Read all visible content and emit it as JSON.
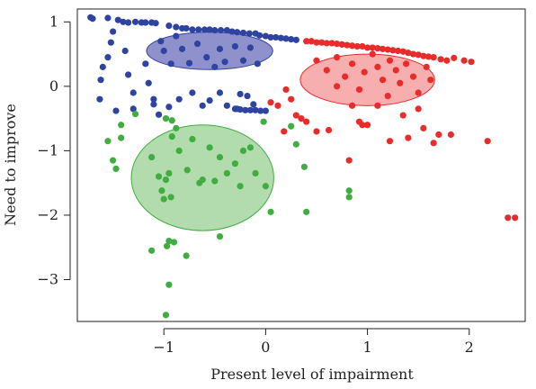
{
  "chart_data": {
    "type": "scatter",
    "title": "",
    "xlabel": "Present level of impairment",
    "ylabel": "Need to improve",
    "xlim": [
      -1.85,
      2.55
    ],
    "ylim": [
      -3.65,
      1.2
    ],
    "x_ticks": [
      -1,
      0,
      1,
      2
    ],
    "y_ticks": [
      1,
      0,
      -1,
      -2,
      -3
    ],
    "grid": false,
    "legend": "none",
    "series": [
      {
        "color": "#2e44a0",
        "ellipse_fill": "#7b7ec4",
        "ellipse": {
          "cx": -0.55,
          "cy": 0.55,
          "rx": 0.62,
          "ry": 0.29
        },
        "points": [
          [
            -1.72,
            1.07
          ],
          [
            -1.7,
            1.05
          ],
          [
            -1.55,
            1.06
          ],
          [
            -1.45,
            1.03
          ],
          [
            -1.4,
            1.0
          ],
          [
            -1.35,
            0.99
          ],
          [
            -1.28,
            1.0
          ],
          [
            -1.22,
            0.99
          ],
          [
            -1.18,
            0.99
          ],
          [
            -1.12,
            0.99
          ],
          [
            -1.08,
            0.98
          ],
          [
            -0.95,
            0.94
          ],
          [
            -0.88,
            0.92
          ],
          [
            -0.82,
            0.9
          ],
          [
            -0.78,
            0.9
          ],
          [
            -0.72,
            0.88
          ],
          [
            -0.66,
            0.88
          ],
          [
            -0.6,
            0.88
          ],
          [
            -0.55,
            0.88
          ],
          [
            -0.5,
            0.87
          ],
          [
            -0.44,
            0.87
          ],
          [
            -0.38,
            0.87
          ],
          [
            -0.33,
            0.85
          ],
          [
            -0.28,
            0.84
          ],
          [
            -0.22,
            0.83
          ],
          [
            -0.16,
            0.82
          ],
          [
            -0.1,
            0.82
          ],
          [
            -0.06,
            0.79
          ],
          [
            0.0,
            0.78
          ],
          [
            0.05,
            0.76
          ],
          [
            0.1,
            0.76
          ],
          [
            0.15,
            0.75
          ],
          [
            0.2,
            0.74
          ],
          [
            0.25,
            0.73
          ],
          [
            0.3,
            0.72
          ],
          [
            -1.5,
            0.85
          ],
          [
            -1.52,
            0.68
          ],
          [
            -1.55,
            0.45
          ],
          [
            -1.6,
            0.3
          ],
          [
            -1.62,
            0.1
          ],
          [
            -1.63,
            -0.2
          ],
          [
            -1.47,
            -0.38
          ],
          [
            -1.38,
            0.55
          ],
          [
            -1.35,
            0.18
          ],
          [
            -1.3,
            -0.1
          ],
          [
            -1.3,
            -0.35
          ],
          [
            -1.18,
            0.35
          ],
          [
            -1.15,
            0.05
          ],
          [
            -1.1,
            -0.2
          ],
          [
            -1.03,
            0.7
          ],
          [
            -1.0,
            0.55
          ],
          [
            -0.93,
            0.35
          ],
          [
            -0.88,
            0.78
          ],
          [
            -0.82,
            0.58
          ],
          [
            -0.75,
            0.36
          ],
          [
            -0.67,
            0.66
          ],
          [
            -0.58,
            0.45
          ],
          [
            -0.5,
            0.3
          ],
          [
            -0.45,
            0.58
          ],
          [
            -0.4,
            0.38
          ],
          [
            -0.3,
            0.62
          ],
          [
            -0.22,
            0.4
          ],
          [
            -0.15,
            0.6
          ],
          [
            -0.08,
            0.35
          ],
          [
            -1.1,
            -0.28
          ],
          [
            -1.05,
            -0.44
          ],
          [
            -0.95,
            -0.32
          ],
          [
            -0.85,
            -0.2
          ],
          [
            -0.72,
            -0.1
          ],
          [
            -0.62,
            -0.3
          ],
          [
            -0.55,
            -0.22
          ],
          [
            -0.45,
            -0.1
          ],
          [
            -0.38,
            -0.3
          ],
          [
            -0.28,
            -0.35
          ],
          [
            -0.25,
            -0.12
          ],
          [
            -0.3,
            -0.35
          ],
          [
            -0.25,
            -0.36
          ],
          [
            -0.2,
            -0.37
          ],
          [
            -0.15,
            -0.37
          ],
          [
            -0.1,
            -0.37
          ],
          [
            -0.05,
            -0.38
          ],
          [
            0.0,
            -0.38
          ],
          [
            -0.18,
            -0.15
          ],
          [
            -0.12,
            -0.28
          ]
        ]
      },
      {
        "color": "#e82b2b",
        "ellipse_fill": "#f6a0a0",
        "ellipse": {
          "cx": 1.0,
          "cy": 0.1,
          "rx": 0.66,
          "ry": 0.4
        },
        "points": [
          [
            0.4,
            0.7
          ],
          [
            0.45,
            0.7
          ],
          [
            0.5,
            0.68
          ],
          [
            0.55,
            0.68
          ],
          [
            0.6,
            0.67
          ],
          [
            0.65,
            0.67
          ],
          [
            0.7,
            0.66
          ],
          [
            0.75,
            0.65
          ],
          [
            0.8,
            0.64
          ],
          [
            0.85,
            0.63
          ],
          [
            0.9,
            0.62
          ],
          [
            0.95,
            0.62
          ],
          [
            1.0,
            0.6
          ],
          [
            1.05,
            0.6
          ],
          [
            1.1,
            0.59
          ],
          [
            1.15,
            0.58
          ],
          [
            1.2,
            0.57
          ],
          [
            1.25,
            0.56
          ],
          [
            1.3,
            0.55
          ],
          [
            1.35,
            0.54
          ],
          [
            1.4,
            0.52
          ],
          [
            1.45,
            0.5
          ],
          [
            1.5,
            0.49
          ],
          [
            1.55,
            0.47
          ],
          [
            1.6,
            0.46
          ],
          [
            1.65,
            0.45
          ],
          [
            1.72,
            0.42
          ],
          [
            1.78,
            0.4
          ],
          [
            1.85,
            0.44
          ],
          [
            1.95,
            0.4
          ],
          [
            2.02,
            0.38
          ],
          [
            0.5,
            0.4
          ],
          [
            0.6,
            0.25
          ],
          [
            0.7,
            0.45
          ],
          [
            0.78,
            0.15
          ],
          [
            0.85,
            0.35
          ],
          [
            0.92,
            -0.05
          ],
          [
            0.97,
            0.22
          ],
          [
            1.05,
            0.5
          ],
          [
            1.1,
            0.3
          ],
          [
            1.15,
            0.1
          ],
          [
            1.22,
            0.4
          ],
          [
            1.28,
            0.25
          ],
          [
            1.32,
            0.05
          ],
          [
            1.38,
            0.35
          ],
          [
            1.45,
            0.15
          ],
          [
            1.5,
            -0.1
          ],
          [
            1.58,
            0.3
          ],
          [
            1.62,
            0.1
          ],
          [
            0.7,
            0.0
          ],
          [
            0.85,
            -0.3
          ],
          [
            0.92,
            -0.55
          ],
          [
            1.0,
            -0.6
          ],
          [
            1.1,
            -0.3
          ],
          [
            1.2,
            -0.15
          ],
          [
            1.35,
            -0.45
          ],
          [
            1.5,
            -0.35
          ],
          [
            0.2,
            -0.05
          ],
          [
            0.25,
            -0.2
          ],
          [
            0.12,
            -0.3
          ],
          [
            0.05,
            -0.25
          ],
          [
            0.3,
            -0.45
          ],
          [
            0.35,
            -0.5
          ],
          [
            0.18,
            -0.7
          ],
          [
            0.4,
            -0.55
          ],
          [
            0.5,
            -0.7
          ],
          [
            0.62,
            -0.68
          ],
          [
            0.82,
            -1.15
          ],
          [
            0.95,
            -0.6
          ],
          [
            1.22,
            -0.85
          ],
          [
            1.4,
            -0.8
          ],
          [
            1.55,
            -0.65
          ],
          [
            1.65,
            -0.88
          ],
          [
            1.7,
            -0.75
          ],
          [
            1.82,
            -0.75
          ],
          [
            2.18,
            -0.85
          ],
          [
            2.38,
            -2.04
          ],
          [
            2.45,
            -2.04
          ]
        ]
      },
      {
        "color": "#3fad3f",
        "ellipse_fill": "#a6d6a0",
        "ellipse": {
          "cx": -0.62,
          "cy": -1.42,
          "rx": 0.7,
          "ry": 0.82
        },
        "points": [
          [
            -1.55,
            -0.85
          ],
          [
            -1.5,
            -1.15
          ],
          [
            -1.47,
            -1.28
          ],
          [
            -1.42,
            -0.8
          ],
          [
            -1.42,
            -0.6
          ],
          [
            -1.28,
            -0.43
          ],
          [
            -1.12,
            -1.1
          ],
          [
            -1.05,
            -1.4
          ],
          [
            -1.02,
            -1.62
          ],
          [
            -1.0,
            -1.75
          ],
          [
            -0.98,
            -1.45
          ],
          [
            -0.95,
            -1.35
          ],
          [
            -0.93,
            -1.72
          ],
          [
            -0.92,
            -0.78
          ],
          [
            -0.98,
            -0.5
          ],
          [
            -0.92,
            -0.53
          ],
          [
            -0.88,
            -0.65
          ],
          [
            -0.85,
            -1.0
          ],
          [
            -0.77,
            -1.3
          ],
          [
            -0.72,
            -0.82
          ],
          [
            -0.65,
            -1.5
          ],
          [
            -0.62,
            -1.45
          ],
          [
            -0.55,
            -0.95
          ],
          [
            -0.5,
            -1.47
          ],
          [
            -0.45,
            -1.1
          ],
          [
            -0.38,
            -1.35
          ],
          [
            -0.3,
            -1.2
          ],
          [
            -0.25,
            -1.55
          ],
          [
            -0.22,
            -1.0
          ],
          [
            -0.15,
            -0.95
          ],
          [
            -0.1,
            -1.35
          ],
          [
            -0.02,
            -0.55
          ],
          [
            0.0,
            -1.55
          ],
          [
            0.05,
            -1.95
          ],
          [
            -0.45,
            -2.33
          ],
          [
            -1.12,
            -2.55
          ],
          [
            -0.95,
            -2.4
          ],
          [
            -0.97,
            -2.48
          ],
          [
            -0.9,
            -2.42
          ],
          [
            -0.78,
            -2.63
          ],
          [
            -0.95,
            -3.08
          ],
          [
            -0.98,
            -3.55
          ],
          [
            0.25,
            -0.62
          ],
          [
            0.3,
            -0.9
          ],
          [
            0.38,
            -1.25
          ],
          [
            0.4,
            -1.95
          ],
          [
            0.82,
            -1.62
          ],
          [
            0.82,
            -1.72
          ]
        ]
      }
    ]
  }
}
